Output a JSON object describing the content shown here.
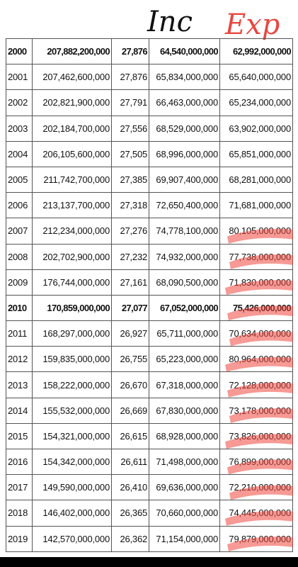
{
  "annotations": {
    "inc": "Inc",
    "exp": "Exp"
  },
  "table": {
    "bold_rows": [
      0,
      10
    ],
    "rows": [
      [
        "2000",
        "207,882,200,000",
        "27,876",
        "64,540,000,000",
        "62,992,000,000"
      ],
      [
        "2001",
        "207,462,600,000",
        "27,876",
        "65,834,000,000",
        "65,640,000,000"
      ],
      [
        "2002",
        "202,821,900,000",
        "27,791",
        "66,463,000,000",
        "65,234,000,000"
      ],
      [
        "2003",
        "202,184,700,000",
        "27,556",
        "68,529,000,000",
        "63,902,000,000"
      ],
      [
        "2004",
        "206,105,600,000",
        "27,505",
        "68,996,000,000",
        "65,851,000,000"
      ],
      [
        "2005",
        "211,742,700,000",
        "27,385",
        "69,907,400,000",
        "68,281,000,000"
      ],
      [
        "2006",
        "213,137,700,000",
        "27,318",
        "72,650,400,000",
        "71,681,000,000"
      ],
      [
        "2007",
        "212,234,000,000",
        "27,276",
        "74,778,100,000",
        "80,105,000,000"
      ],
      [
        "2008",
        "202,702,900,000",
        "27,232",
        "74,932,000,000",
        "77,738,000,000"
      ],
      [
        "2009",
        "176,744,000,000",
        "27,161",
        "68,090,500,000",
        "71,830,000,000"
      ],
      [
        "2010",
        "170,859,000,000",
        "27,077",
        "67,052,000,000",
        "75,426,000,000"
      ],
      [
        "2011",
        "168,297,000,000",
        "26,927",
        "65,711,000,000",
        "70,634,000,000"
      ],
      [
        "2012",
        "159,835,000,000",
        "26,755",
        "65,223,000,000",
        "80,964,000,000"
      ],
      [
        "2013",
        "158,222,000,000",
        "26,670",
        "67,318,000,000",
        "72,128,000,000"
      ],
      [
        "2014",
        "155,532,000,000",
        "26,669",
        "67,830,000,000",
        "73,178,000,000"
      ],
      [
        "2015",
        "154,321,000,000",
        "26,615",
        "68,928,000,000",
        "73,826,000,000"
      ],
      [
        "2016",
        "154,342,000,000",
        "26,611",
        "71,498,000,000",
        "76,899,000,000"
      ],
      [
        "2017",
        "149,590,000,000",
        "26,410",
        "69,636,000,000",
        "72,210,000,000"
      ],
      [
        "2018",
        "146,402,000,000",
        "26,365",
        "70,660,000,000",
        "74,445,000,000"
      ],
      [
        "2019",
        "142,570,000,000",
        "26,362",
        "71,154,000,000",
        "79,879,000,000"
      ]
    ]
  }
}
